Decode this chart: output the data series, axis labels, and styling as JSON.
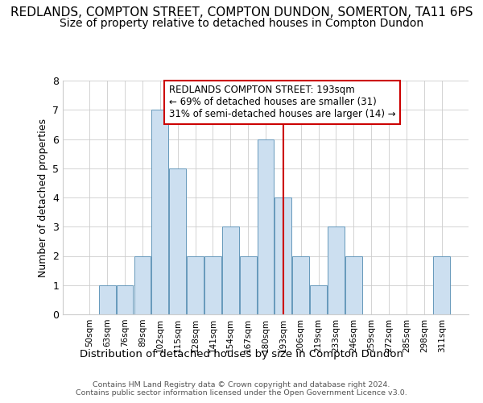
{
  "title": "REDLANDS, COMPTON STREET, COMPTON DUNDON, SOMERTON, TA11 6PS",
  "subtitle": "Size of property relative to detached houses in Compton Dundon",
  "xlabel_bottom": "Distribution of detached houses by size in Compton Dundon",
  "ylabel": "Number of detached properties",
  "categories": [
    "50sqm",
    "63sqm",
    "76sqm",
    "89sqm",
    "102sqm",
    "115sqm",
    "128sqm",
    "141sqm",
    "154sqm",
    "167sqm",
    "180sqm",
    "193sqm",
    "206sqm",
    "219sqm",
    "233sqm",
    "246sqm",
    "259sqm",
    "272sqm",
    "285sqm",
    "298sqm",
    "311sqm"
  ],
  "values": [
    0,
    1,
    1,
    2,
    7,
    5,
    2,
    2,
    3,
    2,
    6,
    4,
    2,
    1,
    3,
    2,
    0,
    0,
    0,
    0,
    2
  ],
  "highlight_index": 11,
  "bar_color": "#ccdff0",
  "bar_edge_color": "#6699bb",
  "highlight_line_color": "#cc0000",
  "ylim": [
    0,
    8
  ],
  "yticks": [
    0,
    1,
    2,
    3,
    4,
    5,
    6,
    7,
    8
  ],
  "annotation_text": "REDLANDS COMPTON STREET: 193sqm\n← 69% of detached houses are smaller (31)\n31% of semi-detached houses are larger (14) →",
  "annotation_box_color": "#ffffff",
  "annotation_box_edge": "#cc0000",
  "footnote": "Contains HM Land Registry data © Crown copyright and database right 2024.\nContains public sector information licensed under the Open Government Licence v3.0.",
  "grid_color": "#cccccc",
  "background_color": "#ffffff",
  "title_fontsize": 11,
  "subtitle_fontsize": 10
}
